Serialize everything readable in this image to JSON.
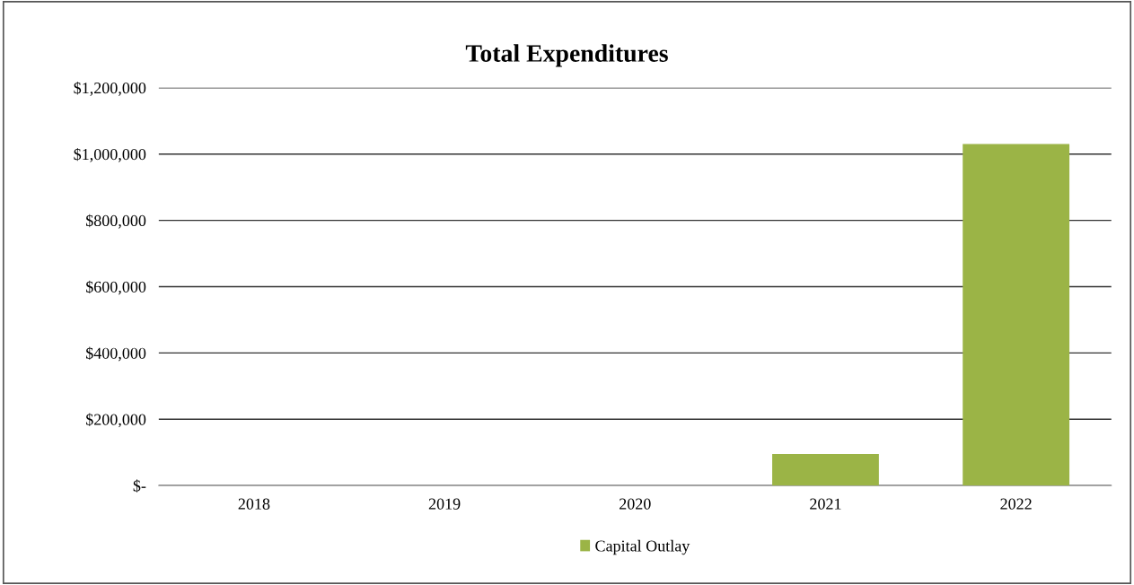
{
  "chart_data": {
    "type": "bar",
    "title": "Total Expenditures",
    "categories": [
      "2018",
      "2019",
      "2020",
      "2021",
      "2022"
    ],
    "series": [
      {
        "name": "Capital Outlay",
        "color": "#9bb446",
        "values": [
          0,
          0,
          0,
          95000,
          1030000
        ]
      }
    ],
    "ylim": [
      0,
      1200000
    ],
    "yticks": [
      {
        "value": 0,
        "label": "$-"
      },
      {
        "value": 200000,
        "label": "$200,000"
      },
      {
        "value": 400000,
        "label": "$400,000"
      },
      {
        "value": 600000,
        "label": "$600,000"
      },
      {
        "value": 800000,
        "label": "$800,000"
      },
      {
        "value": 1000000,
        "label": "$1,000,000"
      },
      {
        "value": 1200000,
        "label": "$1,200,000"
      }
    ],
    "grid": "y",
    "legend": "bottom"
  }
}
